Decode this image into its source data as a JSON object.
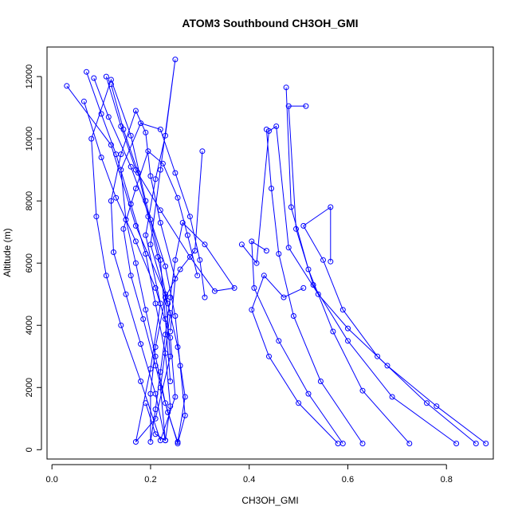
{
  "chart_data": {
    "type": "line",
    "title": "ATOM3 Southbound CH3OH_GMI",
    "xlabel": "CH3OH_GMI",
    "ylabel": "Altitude (m)",
    "xlim": [
      -0.01,
      0.895
    ],
    "ylim": [
      -300,
      12950
    ],
    "xticks": [
      "0.0",
      "0.2",
      "0.4",
      "0.6",
      "0.8"
    ],
    "yticks": [
      "0",
      "2000",
      "4000",
      "6000",
      "8000",
      "10000",
      "12000"
    ],
    "grid": false,
    "legend": "none",
    "marker": "open-circle",
    "color": "#0000ff",
    "series": [
      {
        "x": [
          0.03,
          0.12,
          0.17,
          0.23,
          0.24,
          0.21,
          0.17,
          0.2,
          0.22,
          0.19,
          0.21,
          0.23,
          0.25,
          0.22,
          0.2,
          0.24,
          0.22,
          0.23,
          0.21,
          0.19
        ],
        "y": [
          11700,
          9800,
          7200,
          5000,
          3000,
          1000,
          250,
          2600,
          4700,
          6900,
          8700,
          10100,
          12550,
          9000,
          6600,
          4400,
          2000,
          300,
          500,
          1500
        ]
      },
      {
        "x": [
          0.065,
          0.1,
          0.13,
          0.17,
          0.21,
          0.24,
          0.25,
          0.22,
          0.18,
          0.14,
          0.11,
          0.09,
          0.08,
          0.12,
          0.16,
          0.19,
          0.22,
          0.23,
          0.24
        ],
        "y": [
          11200,
          9400,
          8100,
          6700,
          5200,
          3600,
          1700,
          300,
          2200,
          4000,
          5600,
          7500,
          10000,
          11900,
          10100,
          8000,
          6100,
          4200,
          2200
        ]
      },
      {
        "x": [
          0.07,
          0.1,
          0.13,
          0.16,
          0.19,
          0.21,
          0.23,
          0.24,
          0.23,
          0.21,
          0.18,
          0.15,
          0.125,
          0.12,
          0.14,
          0.17,
          0.19,
          0.2,
          0.22,
          0.25,
          0.24
        ],
        "y": [
          12150,
          10800,
          9500,
          7900,
          6300,
          4700,
          3100,
          1400,
          300,
          1800,
          3400,
          5000,
          6350,
          8000,
          9500,
          10900,
          10200,
          8800,
          7300,
          5500,
          3800
        ]
      },
      {
        "x": [
          0.085,
          0.115,
          0.16,
          0.2,
          0.23,
          0.25,
          0.26,
          0.27,
          0.255,
          0.23,
          0.21,
          0.19,
          0.17,
          0.15,
          0.14,
          0.18,
          0.22,
          0.25,
          0.28,
          0.3,
          0.31
        ],
        "y": [
          11950,
          10700,
          9100,
          7400,
          5900,
          4300,
          2700,
          1100,
          200,
          1500,
          3000,
          4500,
          6000,
          7400,
          9000,
          10500,
          10300,
          8900,
          7500,
          6100,
          4900
        ]
      },
      {
        "x": [
          0.11,
          0.14,
          0.17,
          0.22,
          0.28,
          0.33,
          0.37,
          0.31,
          0.265,
          0.25,
          0.24,
          0.23,
          0.22,
          0.21,
          0.2,
          0.2,
          0.21,
          0.23,
          0.26,
          0.29,
          0.305
        ],
        "y": [
          12000,
          10400,
          9000,
          7700,
          6200,
          5100,
          5200,
          6600,
          7300,
          6100,
          4900,
          3700,
          2500,
          1300,
          250,
          1800,
          3300,
          4900,
          5800,
          6400,
          9600
        ]
      },
      {
        "x": [
          0.12,
          0.145,
          0.175,
          0.195,
          0.215,
          0.235,
          0.255,
          0.27,
          0.255,
          0.235,
          0.21,
          0.185,
          0.16,
          0.145,
          0.17,
          0.195,
          0.225,
          0.255,
          0.275,
          0.295
        ],
        "y": [
          11750,
          10300,
          8900,
          7500,
          6200,
          4700,
          3300,
          1700,
          250,
          1200,
          2700,
          4200,
          5600,
          7100,
          8400,
          9600,
          9200,
          8100,
          6900,
          5600
        ]
      },
      {
        "x": [
          0.63,
          0.545,
          0.49,
          0.46,
          0.445,
          0.435
        ],
        "y": [
          200,
          2200,
          4300,
          6300,
          8400,
          10300
        ]
      },
      {
        "x": [
          0.725,
          0.63,
          0.57,
          0.52,
          0.485,
          0.475
        ],
        "y": [
          200,
          1900,
          3800,
          5800,
          7800,
          11650
        ]
      },
      {
        "x": [
          0.82,
          0.69,
          0.6,
          0.53,
          0.495,
          0.48,
          0.515
        ],
        "y": [
          200,
          1700,
          3500,
          5300,
          7100,
          11050,
          11050
        ]
      },
      {
        "x": [
          0.86,
          0.76,
          0.66,
          0.59,
          0.55,
          0.51,
          0.565,
          0.565
        ],
        "y": [
          200,
          1500,
          3000,
          4500,
          6100,
          7200,
          7800,
          6050
        ]
      },
      {
        "x": [
          0.88,
          0.78,
          0.68,
          0.6,
          0.54,
          0.48,
          0.455,
          0.44,
          0.415,
          0.385
        ],
        "y": [
          200,
          1400,
          2700,
          3900,
          5000,
          6500,
          10400,
          10250,
          6000,
          6600
        ]
      },
      {
        "x": [
          0.58,
          0.5,
          0.44,
          0.405,
          0.43,
          0.47,
          0.51
        ],
        "y": [
          200,
          1500,
          3000,
          4500,
          5600,
          4900,
          5200
        ]
      },
      {
        "x": [
          0.59,
          0.52,
          0.46,
          0.41,
          0.405,
          0.435
        ],
        "y": [
          200,
          1800,
          3500,
          5200,
          6700,
          6400
        ]
      }
    ]
  }
}
